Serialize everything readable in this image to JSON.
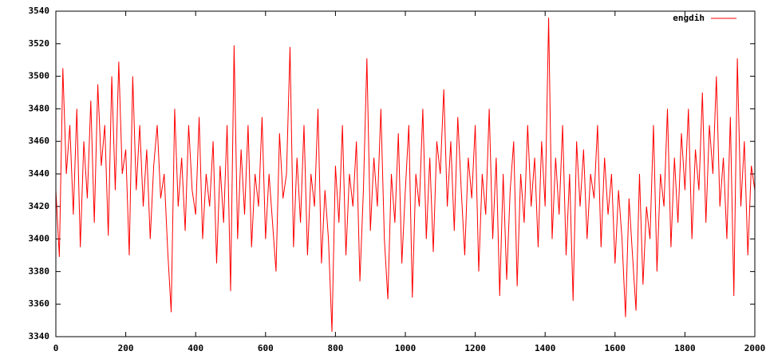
{
  "chart_data": {
    "type": "line",
    "xlim": [
      0,
      2000
    ],
    "xticks": [
      0,
      200,
      400,
      600,
      800,
      1000,
      1200,
      1400,
      1600,
      1800,
      2000
    ],
    "ylim": [
      3340,
      3540
    ],
    "yticks": [
      3340,
      3360,
      3380,
      3400,
      3420,
      3440,
      3460,
      3480,
      3500,
      3520,
      3540
    ],
    "legend": "top-right",
    "grid": false,
    "x": [
      0,
      10,
      20,
      30,
      40,
      50,
      60,
      70,
      80,
      90,
      100,
      110,
      120,
      130,
      140,
      150,
      160,
      170,
      180,
      190,
      200,
      210,
      220,
      230,
      240,
      250,
      260,
      270,
      280,
      290,
      300,
      310,
      320,
      330,
      340,
      350,
      360,
      370,
      380,
      390,
      400,
      410,
      420,
      430,
      440,
      450,
      460,
      470,
      480,
      490,
      500,
      510,
      520,
      530,
      540,
      550,
      560,
      570,
      580,
      590,
      600,
      610,
      620,
      630,
      640,
      650,
      660,
      670,
      680,
      690,
      700,
      710,
      720,
      730,
      740,
      750,
      760,
      770,
      780,
      790,
      800,
      810,
      820,
      830,
      840,
      850,
      860,
      870,
      880,
      890,
      900,
      910,
      920,
      930,
      940,
      950,
      960,
      970,
      980,
      990,
      1000,
      1010,
      1020,
      1030,
      1040,
      1050,
      1060,
      1070,
      1080,
      1090,
      1100,
      1110,
      1120,
      1130,
      1140,
      1150,
      1160,
      1170,
      1180,
      1190,
      1200,
      1210,
      1220,
      1230,
      1240,
      1250,
      1260,
      1270,
      1280,
      1290,
      1300,
      1310,
      1320,
      1330,
      1340,
      1350,
      1360,
      1370,
      1380,
      1390,
      1400,
      1410,
      1420,
      1430,
      1440,
      1450,
      1460,
      1470,
      1480,
      1490,
      1500,
      1510,
      1520,
      1530,
      1540,
      1550,
      1560,
      1570,
      1580,
      1590,
      1600,
      1610,
      1620,
      1630,
      1640,
      1650,
      1660,
      1670,
      1680,
      1690,
      1700,
      1710,
      1720,
      1730,
      1740,
      1750,
      1760,
      1770,
      1780,
      1790,
      1800,
      1810,
      1820,
      1830,
      1840,
      1850,
      1860,
      1870,
      1880,
      1890,
      1900,
      1910,
      1920,
      1930,
      1940,
      1950,
      1960,
      1970,
      1980,
      1990,
      2000
    ],
    "series": [
      {
        "name": "engdih",
        "color": "#ff0000",
        "values": [
          3430,
          3389,
          3505,
          3440,
          3470,
          3415,
          3480,
          3395,
          3460,
          3425,
          3485,
          3410,
          3495,
          3445,
          3470,
          3402,
          3500,
          3430,
          3509,
          3440,
          3455,
          3390,
          3500,
          3430,
          3470,
          3420,
          3455,
          3400,
          3445,
          3470,
          3425,
          3440,
          3393,
          3355,
          3480,
          3420,
          3450,
          3405,
          3470,
          3430,
          3415,
          3475,
          3400,
          3440,
          3420,
          3460,
          3385,
          3445,
          3410,
          3470,
          3368,
          3519,
          3400,
          3455,
          3415,
          3470,
          3395,
          3440,
          3420,
          3475,
          3400,
          3440,
          3410,
          3380,
          3465,
          3425,
          3440,
          3518,
          3395,
          3450,
          3410,
          3470,
          3390,
          3440,
          3420,
          3480,
          3385,
          3430,
          3400,
          3343,
          3445,
          3410,
          3470,
          3390,
          3440,
          3420,
          3460,
          3374,
          3430,
          3511,
          3405,
          3450,
          3420,
          3480,
          3400,
          3363,
          3440,
          3410,
          3465,
          3385,
          3430,
          3470,
          3364,
          3440,
          3420,
          3480,
          3400,
          3450,
          3392,
          3460,
          3440,
          3492,
          3420,
          3460,
          3405,
          3475,
          3430,
          3390,
          3450,
          3425,
          3470,
          3380,
          3440,
          3415,
          3480,
          3400,
          3450,
          3365,
          3440,
          3375,
          3430,
          3460,
          3371,
          3440,
          3410,
          3470,
          3420,
          3450,
          3395,
          3460,
          3420,
          3536,
          3400,
          3450,
          3415,
          3470,
          3390,
          3440,
          3362,
          3460,
          3420,
          3455,
          3400,
          3440,
          3425,
          3470,
          3395,
          3450,
          3415,
          3440,
          3385,
          3430,
          3400,
          3352,
          3425,
          3390,
          3356,
          3440,
          3372,
          3420,
          3400,
          3470,
          3380,
          3440,
          3420,
          3480,
          3395,
          3450,
          3410,
          3465,
          3430,
          3480,
          3400,
          3455,
          3430,
          3490,
          3410,
          3470,
          3440,
          3500,
          3420,
          3450,
          3400,
          3475,
          3365,
          3511,
          3420,
          3460,
          3390,
          3445,
          3430
        ]
      }
    ]
  }
}
